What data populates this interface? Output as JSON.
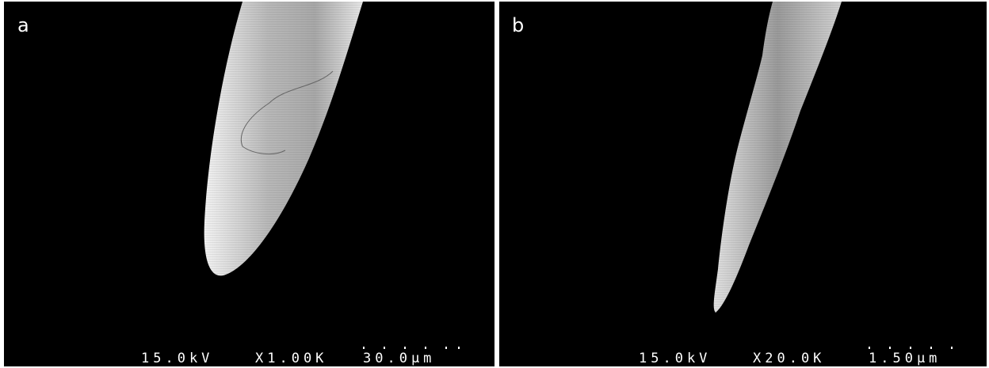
{
  "panels": [
    {
      "label": "a",
      "info": {
        "voltage": "15.0kV",
        "magnification": "X1.00K",
        "scale": "30.0μm"
      }
    },
    {
      "label": "b",
      "info": {
        "voltage": "15.0kV",
        "magnification": "X20.0K",
        "scale": "1.50μm"
      }
    }
  ]
}
